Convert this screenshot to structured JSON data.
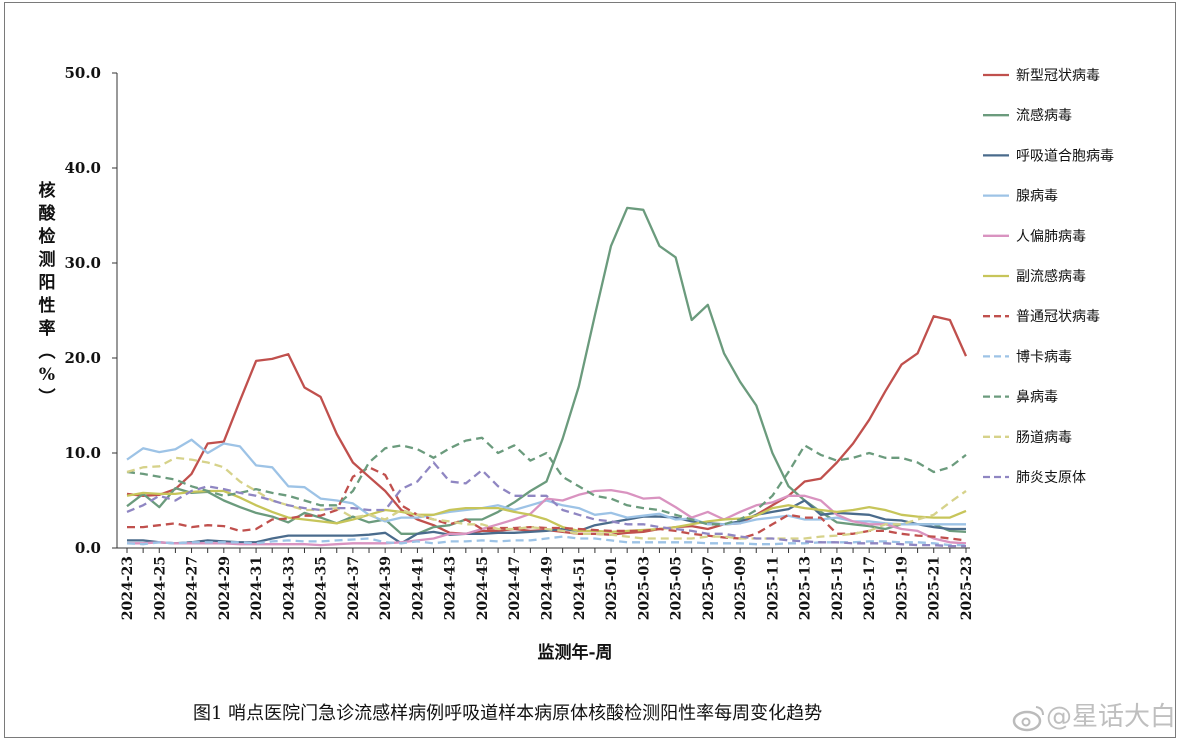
{
  "watermark": "@星话大白",
  "chart_data": {
    "type": "line",
    "ylabel": "核酸检测阳性率（%）",
    "xlabel": "监测年-周",
    "caption": "图1   哨点医院门急诊流感样病例呼吸道样本病原体核酸检测阳性率每周变化趋势",
    "ylim": [
      0,
      50
    ],
    "yticks": [
      "0.0",
      "10.0",
      "20.0",
      "30.0",
      "40.0",
      "50.0"
    ],
    "tick_labels": [
      "2024-23",
      "2024-25",
      "2024-27",
      "2024-29",
      "2024-31",
      "2024-33",
      "2024-35",
      "2024-37",
      "2024-39",
      "2024-41",
      "2024-43",
      "2024-45",
      "2024-47",
      "2024-49",
      "2024-51",
      "2025-01",
      "2025-03",
      "2025-05",
      "2025-07",
      "2025-09",
      "2025-11",
      "2025-13",
      "2025-15",
      "2025-17",
      "2025-19",
      "2025-21",
      "2025-23"
    ],
    "weeks": [
      "2024-23",
      "2024-24",
      "2024-25",
      "2024-26",
      "2024-27",
      "2024-28",
      "2024-29",
      "2024-30",
      "2024-31",
      "2024-32",
      "2024-33",
      "2024-34",
      "2024-35",
      "2024-36",
      "2024-37",
      "2024-38",
      "2024-39",
      "2024-40",
      "2024-41",
      "2024-42",
      "2024-43",
      "2024-44",
      "2024-45",
      "2024-46",
      "2024-47",
      "2024-48",
      "2024-49",
      "2024-50",
      "2024-51",
      "2024-52",
      "2025-01",
      "2025-02",
      "2025-03",
      "2025-04",
      "2025-05",
      "2025-06",
      "2025-07",
      "2025-08",
      "2025-09",
      "2025-10",
      "2025-11",
      "2025-12",
      "2025-13",
      "2025-14",
      "2025-15",
      "2025-16",
      "2025-17",
      "2025-18",
      "2025-19",
      "2025-20",
      "2025-21",
      "2025-22",
      "2025-23"
    ],
    "legend_position": "right",
    "series": [
      {
        "name": "新型冠状病毒",
        "color": "#c0504d",
        "dash": false,
        "values": [
          5.7,
          5.5,
          5.6,
          6.2,
          7.8,
          11.0,
          11.2,
          15.5,
          19.7,
          19.9,
          20.4,
          16.9,
          15.9,
          12.0,
          9.0,
          7.5,
          6.0,
          4.0,
          3.0,
          2.4,
          1.6,
          1.5,
          1.8,
          1.8,
          2.0,
          1.8,
          1.9,
          1.7,
          1.5,
          1.5,
          1.4,
          1.6,
          1.7,
          2.0,
          2.2,
          2.3,
          2.0,
          2.5,
          2.6,
          3.5,
          4.5,
          5.5,
          7.0,
          7.3,
          9.0,
          11.0,
          13.5,
          16.5,
          19.3,
          20.5,
          24.4,
          24.0,
          20.2
        ]
      },
      {
        "name": "流感病毒",
        "color": "#6b9b7d",
        "dash": false,
        "values": [
          4.4,
          5.7,
          4.3,
          6.3,
          5.8,
          5.9,
          5.0,
          4.3,
          3.7,
          3.3,
          2.7,
          3.7,
          3.2,
          2.6,
          3.3,
          2.7,
          3.0,
          1.5,
          1.5,
          2.2,
          2.4,
          3.0,
          3.0,
          3.8,
          4.8,
          6.0,
          7.0,
          11.5,
          17.0,
          24.5,
          31.8,
          35.8,
          35.6,
          31.8,
          30.6,
          24.0,
          25.6,
          20.5,
          17.5,
          15.0,
          10.0,
          6.5,
          5.0,
          3.8,
          2.7,
          2.5,
          2.3,
          2.0,
          2.5,
          2.5,
          2.5,
          1.8,
          1.7
        ]
      },
      {
        "name": "呼吸道合胞病毒",
        "color": "#4a6b8c",
        "dash": false,
        "values": [
          0.8,
          0.8,
          0.6,
          0.5,
          0.6,
          0.8,
          0.7,
          0.6,
          0.6,
          1.0,
          1.3,
          1.3,
          1.3,
          1.3,
          1.3,
          1.4,
          1.6,
          0.5,
          1.5,
          1.7,
          1.4,
          1.5,
          1.5,
          1.6,
          1.6,
          1.7,
          1.8,
          2.0,
          1.8,
          2.4,
          2.7,
          3.0,
          3.3,
          3.3,
          3.2,
          2.8,
          2.6,
          2.5,
          2.8,
          3.5,
          3.8,
          4.1,
          5.0,
          3.5,
          3.7,
          3.6,
          3.5,
          3.0,
          2.9,
          2.5,
          2.2,
          2.0,
          2.0
        ]
      },
      {
        "name": "腺病毒",
        "color": "#9dc3e6",
        "dash": false,
        "values": [
          9.3,
          10.5,
          10.1,
          10.4,
          11.4,
          10.0,
          11.0,
          10.7,
          8.7,
          8.5,
          6.5,
          6.4,
          5.2,
          5.0,
          4.7,
          3.5,
          2.8,
          3.2,
          3.2,
          3.5,
          3.8,
          4.0,
          4.2,
          4.5,
          4.0,
          4.5,
          5.0,
          4.5,
          4.2,
          3.5,
          3.7,
          3.2,
          3.4,
          3.6,
          3.0,
          3.1,
          2.5,
          2.5,
          2.6,
          3.0,
          3.2,
          3.4,
          3.0,
          3.0,
          3.2,
          2.8,
          2.8,
          2.6,
          2.5,
          2.5,
          2.5,
          2.5,
          2.5
        ]
      },
      {
        "name": "人偏肺病毒",
        "color": "#d993c0",
        "dash": false,
        "values": [
          0.5,
          0.5,
          0.6,
          0.5,
          0.5,
          0.5,
          0.5,
          0.4,
          0.4,
          0.4,
          0.4,
          0.4,
          0.3,
          0.4,
          0.5,
          0.5,
          0.5,
          0.6,
          0.8,
          1.0,
          1.5,
          1.5,
          2.0,
          2.5,
          3.0,
          3.6,
          5.2,
          5.0,
          5.6,
          6.0,
          6.1,
          5.8,
          5.2,
          5.3,
          4.3,
          3.2,
          3.8,
          3.0,
          3.8,
          4.5,
          4.8,
          5.5,
          5.5,
          5.0,
          3.5,
          2.8,
          2.5,
          2.5,
          2.0,
          1.8,
          1.0,
          0.6,
          0.5
        ]
      },
      {
        "name": "副流感病毒",
        "color": "#c7c55a",
        "dash": false,
        "values": [
          5.5,
          5.8,
          5.7,
          5.7,
          5.9,
          6.0,
          6.0,
          5.3,
          4.5,
          3.8,
          3.2,
          3.0,
          2.8,
          2.6,
          3.0,
          3.5,
          4.0,
          3.8,
          3.5,
          3.5,
          4.0,
          4.2,
          4.2,
          4.2,
          3.8,
          3.5,
          3.0,
          2.2,
          1.8,
          1.8,
          1.7,
          1.8,
          1.9,
          2.0,
          2.2,
          2.5,
          2.8,
          3.0,
          3.1,
          3.4,
          4.2,
          4.5,
          4.2,
          4.0,
          3.8,
          4.0,
          4.3,
          4.0,
          3.5,
          3.3,
          3.2,
          3.2,
          3.9
        ]
      },
      {
        "name": "普通冠状病毒",
        "color": "#c0504d",
        "dash": true,
        "values": [
          2.2,
          2.2,
          2.4,
          2.6,
          2.2,
          2.4,
          2.3,
          1.8,
          2.0,
          3.0,
          3.1,
          3.4,
          3.4,
          4.0,
          7.5,
          8.5,
          7.7,
          4.5,
          3.5,
          3.0,
          2.5,
          3.0,
          2.0,
          2.1,
          2.1,
          2.2,
          2.1,
          2.1,
          2.0,
          1.9,
          1.8,
          1.8,
          1.8,
          2.0,
          1.8,
          1.5,
          1.3,
          1.1,
          1.0,
          1.5,
          2.5,
          3.5,
          3.2,
          3.2,
          1.5,
          1.5,
          1.8,
          1.8,
          1.5,
          1.3,
          1.2,
          1.0,
          0.8
        ]
      },
      {
        "name": "博卡病毒",
        "color": "#9dc3e6",
        "dash": true,
        "values": [
          0.5,
          0.4,
          0.6,
          0.5,
          0.6,
          0.6,
          0.6,
          0.6,
          0.5,
          0.7,
          0.8,
          0.7,
          0.7,
          0.8,
          0.9,
          1.0,
          0.6,
          0.5,
          0.7,
          0.5,
          0.7,
          0.7,
          0.8,
          0.7,
          0.8,
          0.8,
          1.0,
          1.2,
          1.0,
          1.0,
          0.8,
          0.6,
          0.6,
          0.6,
          0.6,
          0.6,
          0.5,
          0.5,
          0.5,
          0.4,
          0.4,
          0.5,
          0.5,
          0.6,
          0.6,
          0.6,
          0.7,
          0.7,
          0.6,
          0.6,
          0.5,
          0.3,
          0.3
        ]
      },
      {
        "name": "鼻病毒",
        "color": "#6b9b7d",
        "dash": true,
        "values": [
          8.0,
          7.8,
          7.5,
          7.2,
          6.5,
          6.0,
          5.5,
          5.8,
          6.2,
          5.8,
          5.5,
          5.0,
          4.5,
          4.5,
          6.0,
          9.0,
          10.5,
          10.8,
          10.4,
          9.5,
          10.5,
          11.3,
          11.6,
          10.0,
          10.8,
          9.2,
          10.0,
          7.5,
          6.5,
          5.5,
          5.2,
          4.5,
          4.2,
          4.0,
          3.5,
          3.0,
          2.5,
          2.5,
          3.0,
          4.0,
          5.5,
          8.0,
          10.8,
          9.8,
          9.2,
          9.5,
          10.0,
          9.5,
          9.5,
          9.0,
          8.0,
          8.5,
          9.8
        ]
      },
      {
        "name": "肠道病毒",
        "color": "#d6d28a",
        "dash": true,
        "values": [
          8.0,
          8.5,
          8.6,
          9.5,
          9.3,
          9.0,
          8.5,
          7.0,
          6.0,
          5.0,
          4.5,
          4.0,
          4.0,
          4.2,
          3.2,
          3.5,
          3.0,
          4.0,
          3.5,
          3.0,
          2.8,
          2.5,
          2.5,
          2.0,
          2.0,
          2.2,
          2.0,
          1.8,
          1.5,
          1.5,
          1.4,
          1.2,
          1.0,
          1.0,
          1.0,
          1.0,
          1.2,
          1.2,
          1.0,
          1.0,
          1.0,
          1.0,
          1.0,
          1.2,
          1.3,
          1.5,
          1.8,
          2.5,
          2.5,
          3.0,
          3.5,
          4.8,
          6.0
        ]
      },
      {
        "name": "肺炎支原体",
        "color": "#8f86c2",
        "dash": true,
        "values": [
          3.8,
          4.5,
          5.5,
          5.0,
          6.0,
          6.5,
          6.2,
          5.8,
          5.5,
          5.0,
          4.5,
          4.2,
          4.0,
          4.2,
          4.2,
          4.0,
          4.0,
          6.2,
          7.0,
          9.0,
          7.0,
          6.8,
          8.2,
          6.5,
          5.5,
          5.5,
          5.5,
          4.0,
          3.5,
          3.0,
          2.8,
          2.5,
          2.5,
          2.2,
          2.0,
          1.8,
          1.5,
          1.5,
          1.2,
          1.0,
          1.0,
          0.8,
          0.7,
          0.6,
          0.6,
          0.5,
          0.5,
          0.5,
          0.4,
          0.3,
          0.3,
          0.2,
          0.2
        ]
      }
    ]
  }
}
